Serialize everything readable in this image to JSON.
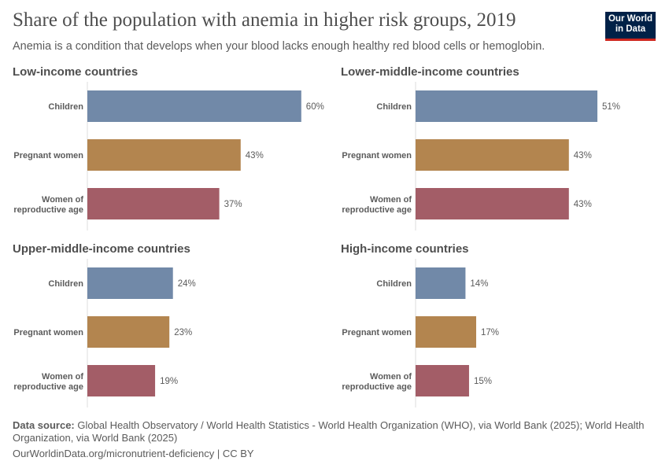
{
  "header": {
    "title": "Share of the population with anemia in higher risk groups, 2019",
    "subtitle": "Anemia is a condition that develops when your blood lacks enough healthy red blood cells or hemoglobin.",
    "logo": [
      "Our World",
      "in Data"
    ]
  },
  "footer": {
    "source_label": "Data source:",
    "source": "Global Health Observatory / World Health Statistics - World Health Organization (WHO), via World Bank (2025); World Health Organization, via World Bank (2025)",
    "url": "OurWorldinData.org/micronutrient-deficiency | CC BY"
  },
  "chart_data": {
    "type": "bar",
    "orientation": "horizontal",
    "unit": "%",
    "categories": [
      [
        "Children"
      ],
      [
        "Pregnant women"
      ],
      [
        "Women of",
        "reproductive age"
      ]
    ],
    "colors": [
      "#7189a8",
      "#b3854f",
      "#a35d67"
    ],
    "xlim": [
      0,
      60
    ],
    "panels": [
      {
        "title": "Low-income countries",
        "values": [
          60,
          43,
          37
        ]
      },
      {
        "title": "Lower-middle-income countries",
        "values": [
          51,
          43,
          43
        ]
      },
      {
        "title": "Upper-middle-income countries",
        "values": [
          24,
          23,
          19
        ]
      },
      {
        "title": "High-income countries",
        "values": [
          14,
          17,
          15
        ]
      }
    ]
  }
}
